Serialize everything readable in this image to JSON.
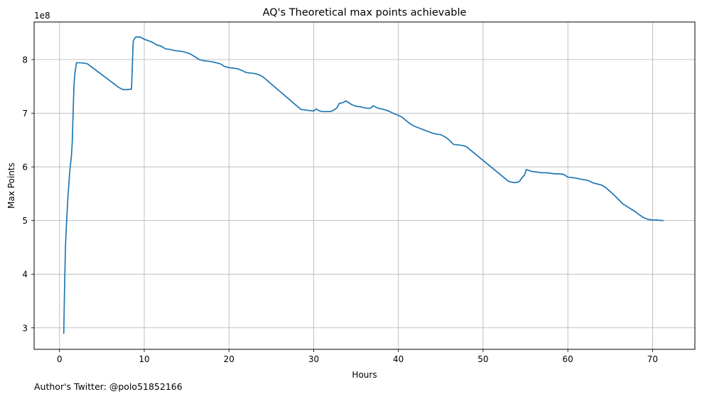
{
  "chart_data": {
    "type": "line",
    "title": "AQ's Theoretical max points achievable",
    "xlabel": "Hours",
    "ylabel": "Max Points",
    "y_offset_text": "1e8",
    "xlim": [
      -3,
      75
    ],
    "ylim": [
      2.6,
      8.7
    ],
    "xticks": [
      0,
      10,
      20,
      30,
      40,
      50,
      60,
      70
    ],
    "yticks": [
      3,
      4,
      5,
      6,
      7,
      8
    ],
    "grid": true,
    "line_color": "#1f77b4",
    "series": [
      {
        "x": [
          0.5,
          0.6,
          0.7,
          0.8,
          1.0,
          1.2,
          1.4,
          1.5,
          1.7,
          1.8,
          2.0,
          2.2,
          2.5,
          3.0,
          3.3,
          7.0,
          7.5,
          8.0,
          8.5,
          8.7,
          9.0,
          9.5,
          10.0,
          10.5,
          11.0,
          11.5,
          12.0,
          12.5,
          13.0,
          13.5,
          14.0,
          14.5,
          15.0,
          15.5,
          16.0,
          16.5,
          17.0,
          17.5,
          18.0,
          18.5,
          19.0,
          19.5,
          20.0,
          20.5,
          21.0,
          21.5,
          22.0,
          22.5,
          23.0,
          23.5,
          24.0,
          28.5,
          29.0,
          29.5,
          30.0,
          30.3,
          30.6,
          31.0,
          31.5,
          32.0,
          32.5,
          32.8,
          33.0,
          33.5,
          33.8,
          34.0,
          34.5,
          35.0,
          35.5,
          36.0,
          36.5,
          36.8,
          37.0,
          37.5,
          38.0,
          38.5,
          39.0,
          39.5,
          40.0,
          40.5,
          41.0,
          41.5,
          42.0,
          42.5,
          43.0,
          43.5,
          44.0,
          44.5,
          45.0,
          45.5,
          46.0,
          46.5,
          47.0,
          47.5,
          48.0,
          53.0,
          53.5,
          54.0,
          54.3,
          54.6,
          54.9,
          55.1,
          55.3,
          55.6,
          56.0,
          56.5,
          57.0,
          57.5,
          58.0,
          58.5,
          59.0,
          59.5,
          60.0,
          60.5,
          61.0,
          61.5,
          62.0,
          62.5,
          63.0,
          63.5,
          64.0,
          64.5,
          65.0,
          65.5,
          66.0,
          66.5,
          67.0,
          67.5,
          68.0,
          68.5,
          69.0,
          69.5,
          70.0,
          70.5,
          71.0,
          71.3
        ],
        "y": [
          2.89,
          3.8,
          4.5,
          4.88,
          5.45,
          5.9,
          6.2,
          6.45,
          7.5,
          7.72,
          7.94,
          7.94,
          7.94,
          7.93,
          7.92,
          7.48,
          7.44,
          7.44,
          7.45,
          8.35,
          8.42,
          8.42,
          8.38,
          8.35,
          8.32,
          8.27,
          8.25,
          8.2,
          8.19,
          8.17,
          8.16,
          8.15,
          8.13,
          8.1,
          8.05,
          8.0,
          7.98,
          7.97,
          7.96,
          7.94,
          7.92,
          7.87,
          7.85,
          7.84,
          7.83,
          7.8,
          7.76,
          7.75,
          7.74,
          7.72,
          7.68,
          7.07,
          7.06,
          7.05,
          7.04,
          7.08,
          7.05,
          7.03,
          7.03,
          7.03,
          7.07,
          7.11,
          7.18,
          7.2,
          7.23,
          7.21,
          7.16,
          7.13,
          7.12,
          7.1,
          7.09,
          7.1,
          7.14,
          7.1,
          7.08,
          7.06,
          7.03,
          6.99,
          6.96,
          6.92,
          6.85,
          6.79,
          6.75,
          6.72,
          6.69,
          6.66,
          6.63,
          6.61,
          6.6,
          6.56,
          6.5,
          6.42,
          6.41,
          6.4,
          6.38,
          5.73,
          5.71,
          5.71,
          5.73,
          5.8,
          5.85,
          5.95,
          5.94,
          5.92,
          5.91,
          5.9,
          5.89,
          5.89,
          5.88,
          5.87,
          5.87,
          5.86,
          5.81,
          5.8,
          5.79,
          5.77,
          5.76,
          5.74,
          5.7,
          5.68,
          5.66,
          5.61,
          5.54,
          5.47,
          5.39,
          5.31,
          5.26,
          5.21,
          5.16,
          5.1,
          5.05,
          5.02,
          5.01,
          5.01,
          5.0,
          5.0
        ]
      }
    ]
  },
  "footer": {
    "credit": "Author's Twitter: @polo51852166"
  }
}
